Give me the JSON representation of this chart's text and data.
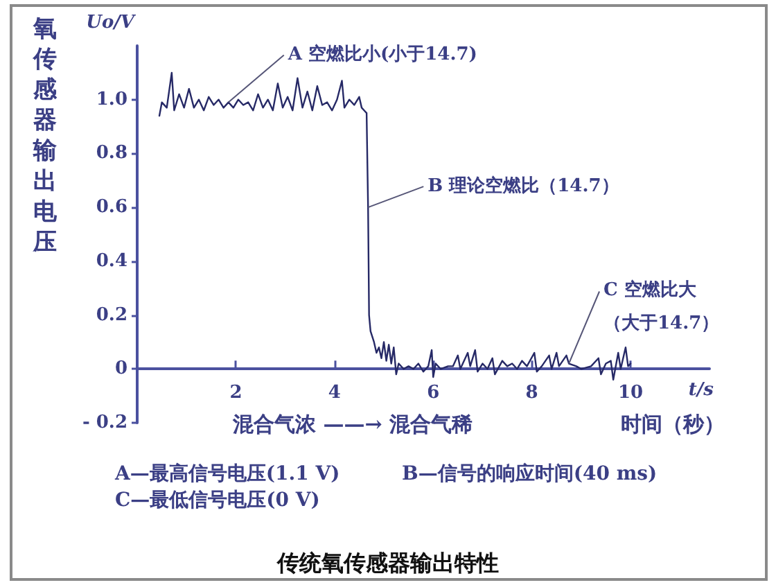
{
  "chart_data": {
    "type": "line",
    "title": "传统氧传感器输出特性",
    "xlabel": "t/s",
    "ylabel": "Uo/V",
    "x": [
      0.45,
      0.5,
      0.6,
      0.7,
      0.75,
      0.85,
      0.95,
      1.05,
      1.15,
      1.25,
      1.35,
      1.45,
      1.55,
      1.65,
      1.75,
      1.85,
      1.95,
      2.05,
      2.15,
      2.25,
      2.35,
      2.45,
      2.55,
      2.65,
      2.75,
      2.85,
      2.95,
      3.05,
      3.15,
      3.25,
      3.35,
      3.45,
      3.55,
      3.65,
      3.75,
      3.85,
      3.95,
      4.05,
      4.15,
      4.2,
      4.3,
      4.4,
      4.5,
      4.55,
      4.6,
      4.65,
      4.68,
      4.7,
      4.73,
      4.8,
      4.85,
      4.9,
      4.95,
      5.0,
      5.05,
      5.1,
      5.15,
      5.2,
      5.25,
      5.3,
      5.4,
      5.5,
      5.6,
      5.7,
      5.8,
      5.9,
      5.97,
      6.0,
      6.05,
      6.15,
      6.3,
      6.4,
      6.5,
      6.55,
      6.7,
      6.75,
      6.85,
      6.9,
      7.0,
      7.1,
      7.2,
      7.25,
      7.4,
      7.5,
      7.6,
      7.7,
      7.8,
      7.9,
      8.05,
      8.1,
      8.2,
      8.35,
      8.4,
      8.5,
      8.55,
      8.7,
      8.75,
      8.9,
      9.0,
      9.2,
      9.35,
      9.4,
      9.5,
      9.6,
      9.65,
      9.75,
      9.8,
      9.9,
      9.95,
      10.0
    ],
    "values": [
      0.94,
      0.99,
      0.97,
      1.1,
      0.96,
      1.02,
      0.97,
      1.04,
      0.97,
      1.0,
      0.96,
      1.01,
      0.98,
      1.0,
      0.97,
      0.99,
      0.97,
      1.0,
      0.98,
      0.99,
      0.96,
      1.02,
      0.97,
      1.0,
      0.96,
      1.06,
      0.97,
      1.01,
      0.96,
      1.08,
      0.97,
      1.03,
      0.96,
      1.05,
      0.98,
      0.99,
      0.96,
      1.0,
      1.07,
      0.97,
      1.0,
      0.98,
      1.01,
      0.97,
      0.96,
      0.95,
      0.6,
      0.2,
      0.14,
      0.1,
      0.06,
      0.08,
      0.04,
      0.1,
      0.03,
      0.09,
      0.02,
      0.08,
      -0.02,
      0.02,
      0.0,
      0.01,
      0.0,
      0.02,
      -0.01,
      0.01,
      0.07,
      -0.03,
      0.02,
      0.0,
      0.01,
      0.01,
      0.05,
      0.0,
      0.06,
      0.01,
      0.07,
      -0.01,
      0.02,
      0.0,
      0.04,
      -0.02,
      0.03,
      0.01,
      0.02,
      0.0,
      0.03,
      0.01,
      0.06,
      -0.01,
      0.01,
      0.05,
      0.0,
      0.06,
      0.01,
      0.05,
      0.02,
      0.01,
      0.0,
      0.01,
      0.04,
      -0.02,
      0.02,
      0.03,
      -0.04,
      0.06,
      0.0,
      0.08,
      0.01,
      0.02
    ],
    "color": "#262966",
    "xlim": [
      0,
      11.6
    ],
    "ylim": [
      -0.2,
      1.2
    ],
    "xticks": [
      2,
      4,
      6,
      8,
      10
    ],
    "yticks": [
      {
        "value": -0.2,
        "label": "- 0.2"
      },
      0,
      0.2,
      0.4,
      0.6,
      0.8,
      {
        "value": 1,
        "label": "1.0"
      }
    ],
    "annotations": [
      {
        "text": "A 空燃比小(小于14.7)",
        "x": 1.85,
        "y": 0.99
      },
      {
        "text": "B 理论空燃比（14.7）",
        "x": 4.68,
        "y": 0.6
      },
      {
        "text": "C 空燃比大（大于14.7）",
        "x": 8.75,
        "y": 0.02
      },
      "氧传感器输出电压",
      "混合气浓 ——→ 混合气稀",
      "时间（秒）",
      "A—最高信号电压(1.1 V)",
      "B—信号的响应时间(40 ms)",
      "C—最低信号电压(0 V)"
    ]
  }
}
